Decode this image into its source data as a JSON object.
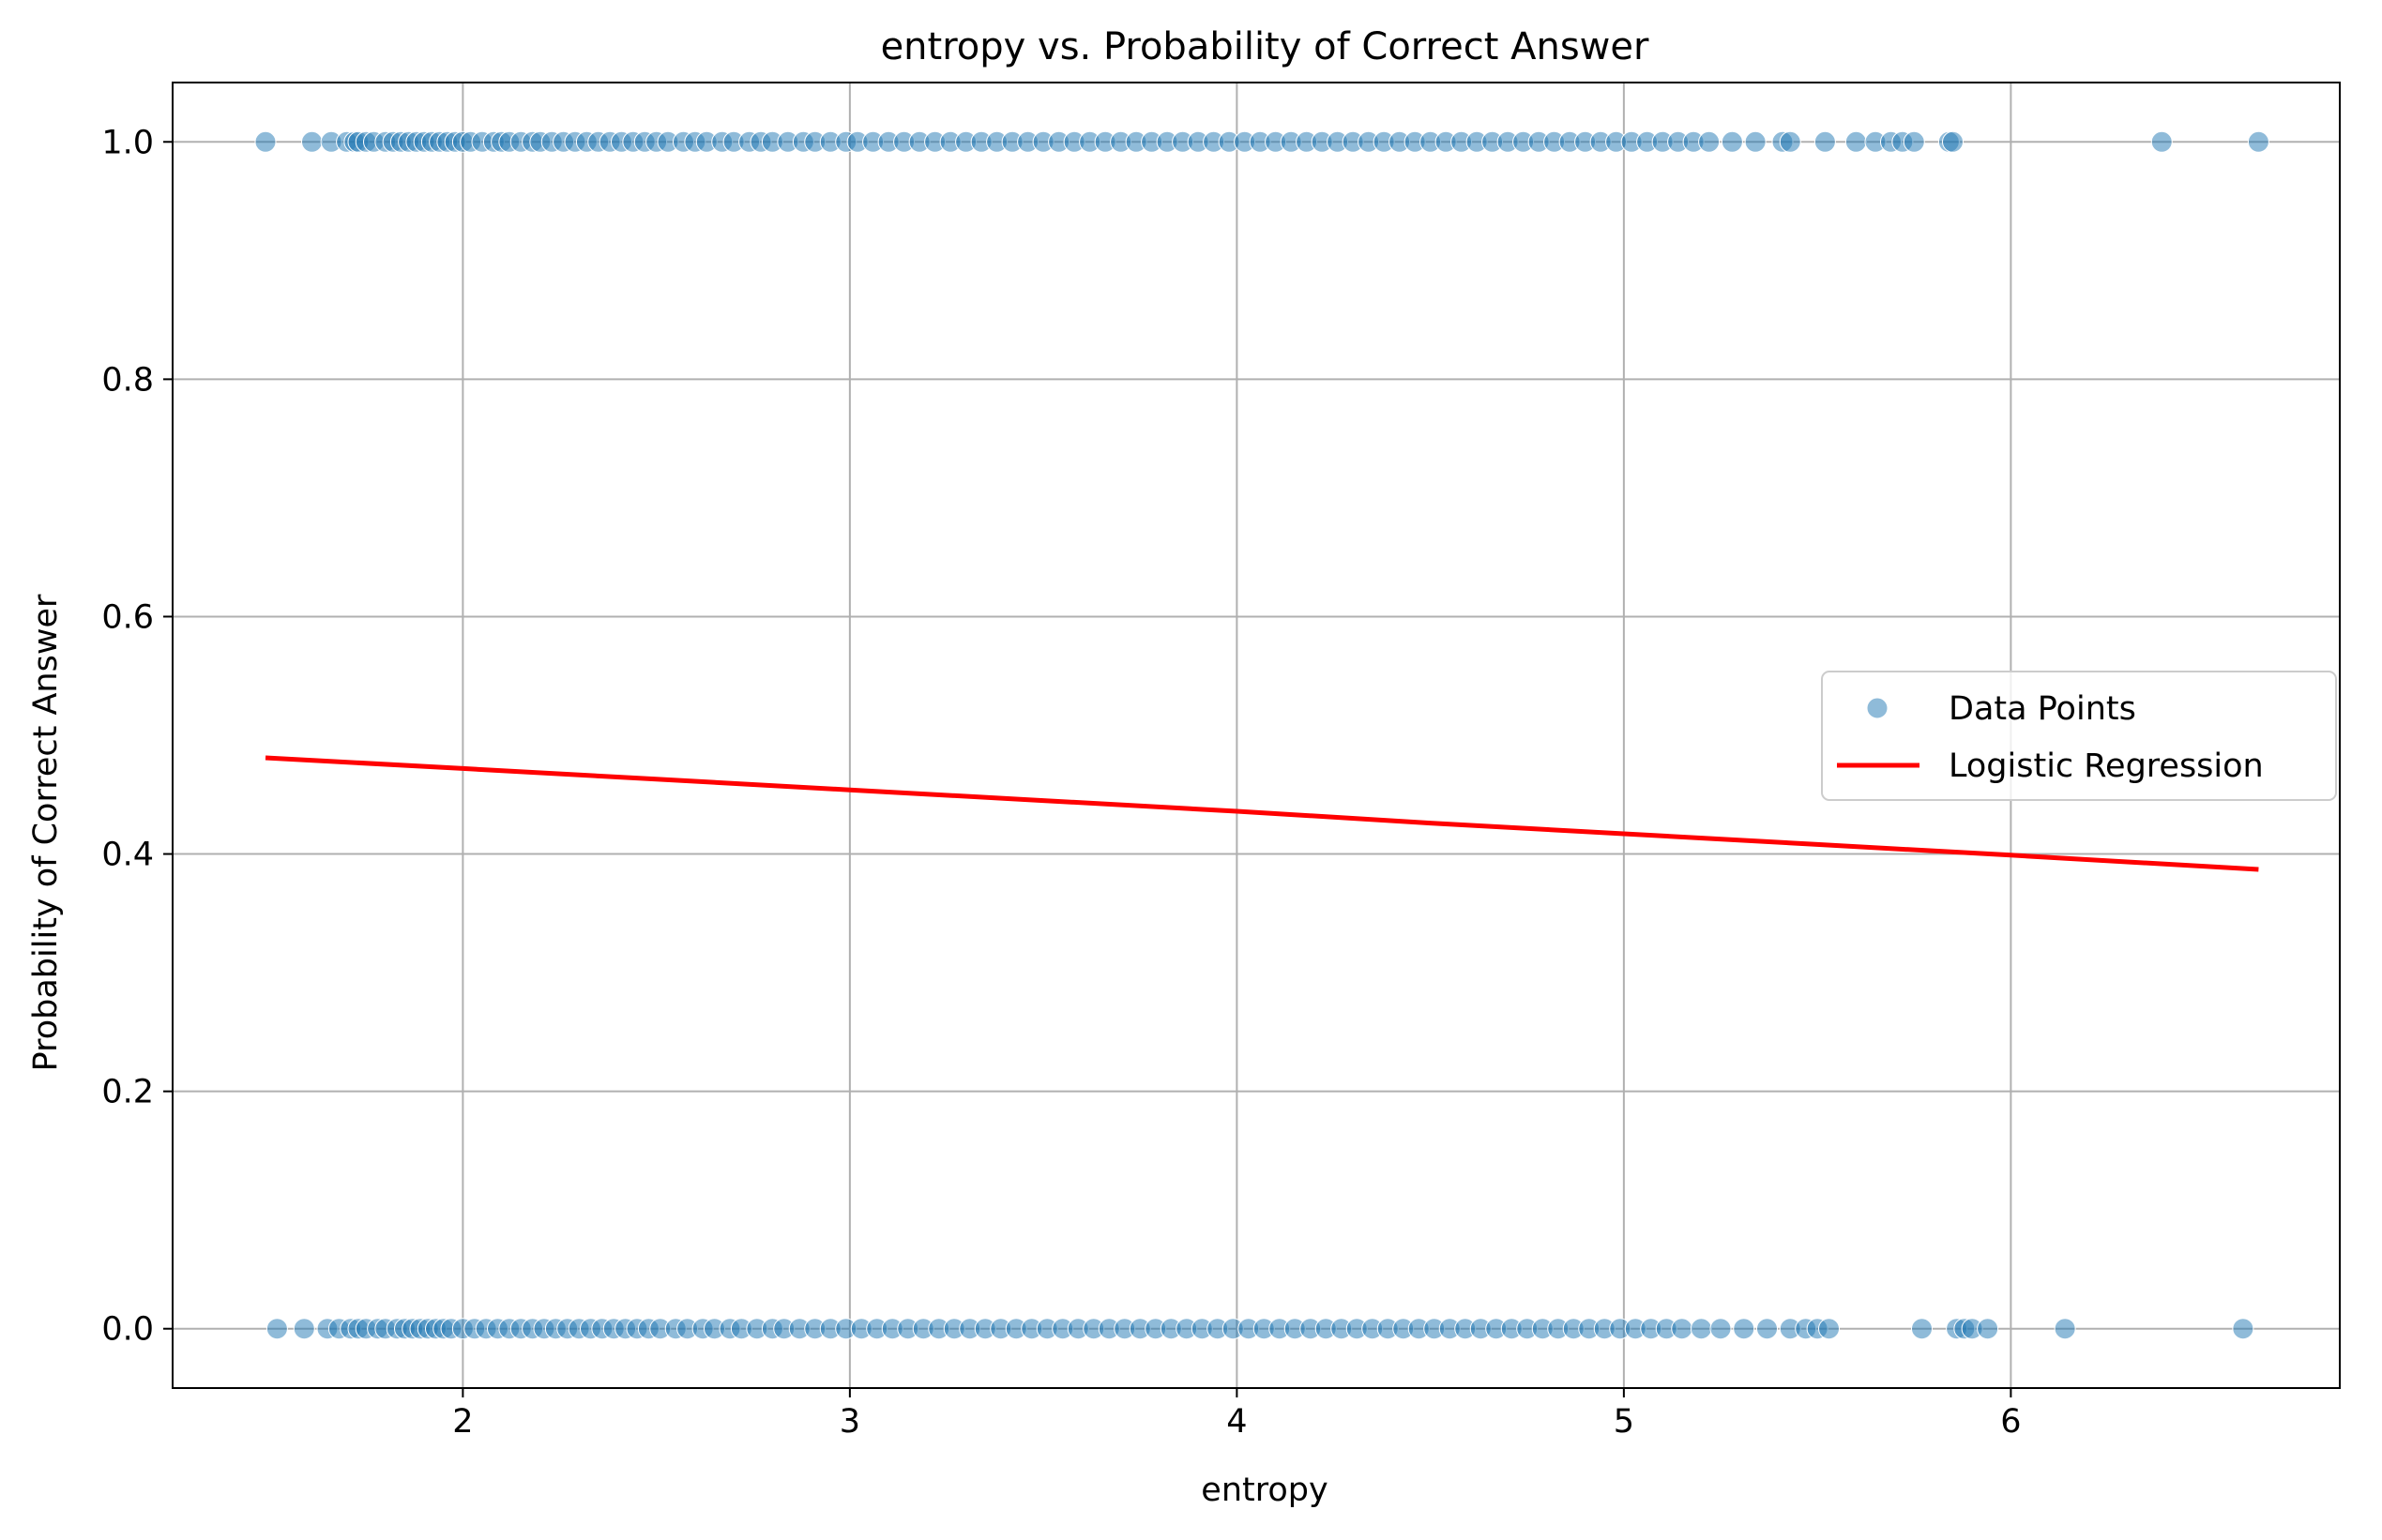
{
  "chart_data": {
    "type": "scatter",
    "title": "entropy vs. Probability of Correct Answer",
    "xlabel": "entropy",
    "ylabel": "Probability of Correct Answer",
    "xlim": [
      1.25,
      6.85
    ],
    "ylim": [
      -0.05,
      1.05
    ],
    "xticks": [
      2,
      3,
      4,
      5,
      6
    ],
    "xtick_labels": [
      "2",
      "3",
      "4",
      "5",
      "6"
    ],
    "yticks": [
      0.0,
      0.2,
      0.4,
      0.6,
      0.8,
      1.0
    ],
    "ytick_labels": [
      "0.0",
      "0.2",
      "0.4",
      "0.6",
      "0.8",
      "1.0"
    ],
    "grid": true,
    "legend": {
      "position": "center-right",
      "entries": [
        "Data Points",
        "Logistic Regression"
      ]
    },
    "colors": {
      "points": "#1f77b4",
      "regression": "#ff0000",
      "grid": "#b0b0b0"
    },
    "series": [
      {
        "name": "Data Points",
        "type": "scatter",
        "y1_x": [
          1.49,
          1.61,
          1.66,
          1.7,
          1.72,
          1.73,
          1.75,
          1.77,
          1.8,
          1.82,
          1.84,
          1.86,
          1.88,
          1.9,
          1.92,
          1.94,
          1.96,
          1.98,
          2.0,
          2.02,
          2.05,
          2.08,
          2.1,
          2.12,
          2.15,
          2.18,
          2.2,
          2.23,
          2.26,
          2.29,
          2.32,
          2.35,
          2.38,
          2.41,
          2.44,
          2.47,
          2.5,
          2.53,
          2.57,
          2.6,
          2.63,
          2.67,
          2.7,
          2.74,
          2.77,
          2.8,
          2.84,
          2.88,
          2.91,
          2.95,
          2.99,
          3.02,
          3.06,
          3.1,
          3.14,
          3.18,
          3.22,
          3.26,
          3.3,
          3.34,
          3.38,
          3.42,
          3.46,
          3.5,
          3.54,
          3.58,
          3.62,
          3.66,
          3.7,
          3.74,
          3.78,
          3.82,
          3.86,
          3.9,
          3.94,
          3.98,
          4.02,
          4.06,
          4.1,
          4.14,
          4.18,
          4.22,
          4.26,
          4.3,
          4.34,
          4.38,
          4.42,
          4.46,
          4.5,
          4.54,
          4.58,
          4.62,
          4.66,
          4.7,
          4.74,
          4.78,
          4.82,
          4.86,
          4.9,
          4.94,
          4.98,
          5.02,
          5.06,
          5.1,
          5.14,
          5.18,
          5.22,
          5.28,
          5.34,
          5.41,
          5.43,
          5.52,
          5.6,
          5.65,
          5.69,
          5.72,
          5.75,
          5.84,
          5.85,
          6.39,
          6.64
        ],
        "y0_x": [
          1.52,
          1.59,
          1.65,
          1.68,
          1.71,
          1.73,
          1.75,
          1.78,
          1.8,
          1.83,
          1.85,
          1.87,
          1.89,
          1.91,
          1.93,
          1.95,
          1.97,
          2.0,
          2.03,
          2.06,
          2.09,
          2.12,
          2.15,
          2.18,
          2.21,
          2.24,
          2.27,
          2.3,
          2.33,
          2.36,
          2.39,
          2.42,
          2.45,
          2.48,
          2.51,
          2.55,
          2.58,
          2.62,
          2.65,
          2.69,
          2.72,
          2.76,
          2.8,
          2.83,
          2.87,
          2.91,
          2.95,
          2.99,
          3.03,
          3.07,
          3.11,
          3.15,
          3.19,
          3.23,
          3.27,
          3.31,
          3.35,
          3.39,
          3.43,
          3.47,
          3.51,
          3.55,
          3.59,
          3.63,
          3.67,
          3.71,
          3.75,
          3.79,
          3.83,
          3.87,
          3.91,
          3.95,
          3.99,
          4.03,
          4.07,
          4.11,
          4.15,
          4.19,
          4.23,
          4.27,
          4.31,
          4.35,
          4.39,
          4.43,
          4.47,
          4.51,
          4.55,
          4.59,
          4.63,
          4.67,
          4.71,
          4.75,
          4.79,
          4.83,
          4.87,
          4.91,
          4.95,
          4.99,
          5.03,
          5.07,
          5.11,
          5.15,
          5.2,
          5.25,
          5.31,
          5.37,
          5.43,
          5.47,
          5.5,
          5.53,
          5.77,
          5.86,
          5.88,
          5.9,
          5.94,
          6.14,
          6.6
        ]
      },
      {
        "name": "Logistic Regression",
        "type": "line",
        "x": [
          1.49,
          2.0,
          2.5,
          3.0,
          3.5,
          4.0,
          4.5,
          5.0,
          5.5,
          6.0,
          6.64
        ],
        "values": [
          0.481,
          0.472,
          0.463,
          0.454,
          0.445,
          0.436,
          0.426,
          0.417,
          0.408,
          0.399,
          0.387
        ]
      }
    ]
  }
}
